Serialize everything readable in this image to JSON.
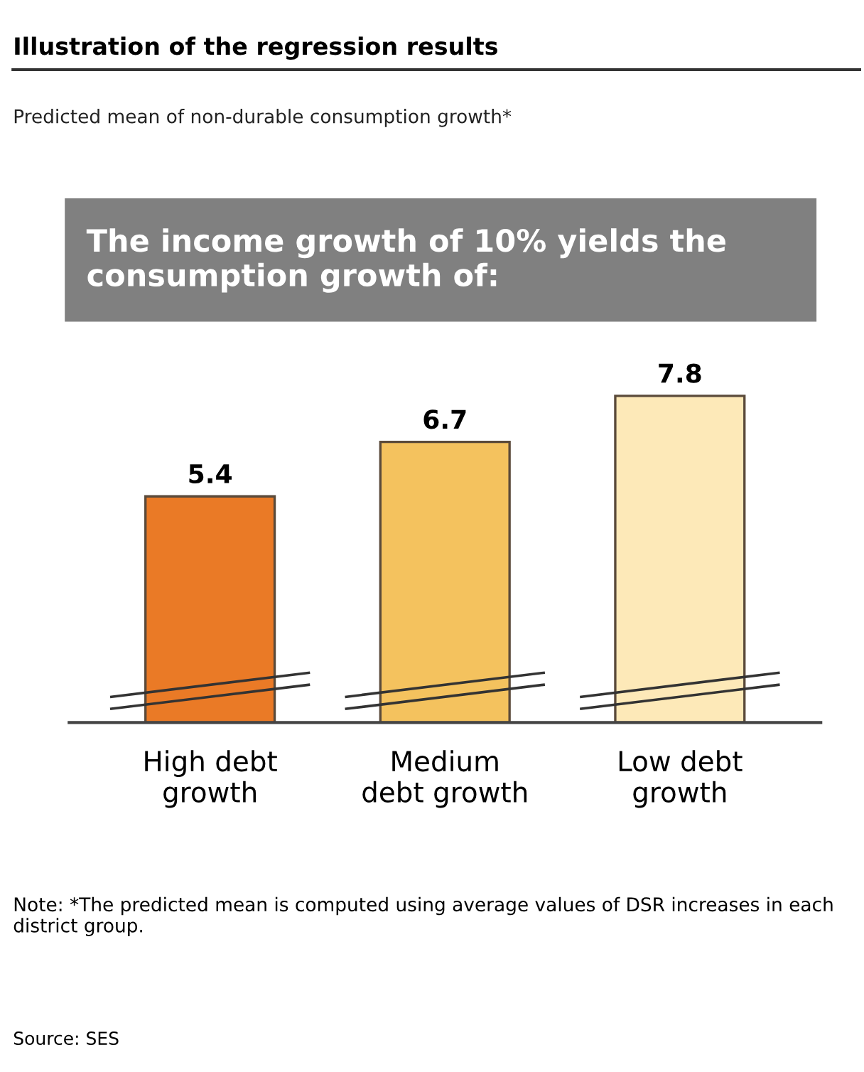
{
  "chart_data": {
    "type": "bar",
    "title": "Illustration of the regression results",
    "subtitle": "Predicted mean of non-durable consumption growth*",
    "annotations": [
      "The income growth of 10% yields the consumption growth of:",
      "Note: *The predicted mean is computed using average values of DSR increases in each district group.",
      "Source: SES"
    ],
    "categories": [
      "High debt\ngrowth",
      "Medium\ndebt growth",
      "Low debt\ngrowth"
    ],
    "values": [
      5.4,
      6.7,
      7.8
    ],
    "colors": [
      "#ea7a26",
      "#f4c25e",
      "#fde9b8"
    ],
    "data_labels": true,
    "grid": false,
    "legend": false
  }
}
